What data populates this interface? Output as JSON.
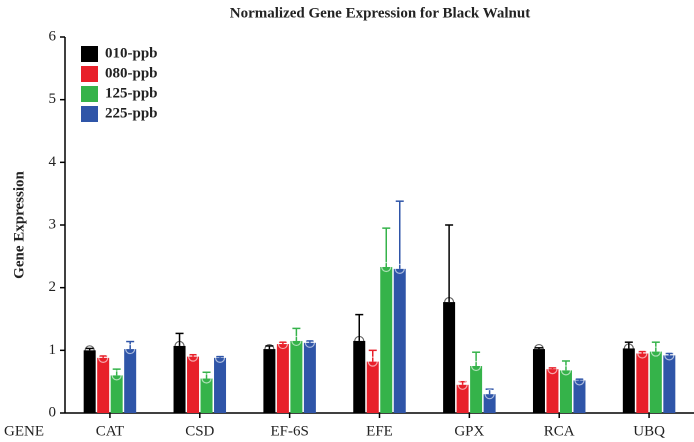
{
  "chart_data": {
    "type": "bar",
    "title": "Normalized Gene Expression for Black Walnut",
    "x_label": "GENE",
    "y_label": "Gene Expression",
    "categories": [
      "CAT",
      "CSD",
      "EF-6S",
      "EFE",
      "GPX",
      "RCA",
      "UBQ"
    ],
    "series": [
      {
        "name": "010-ppb",
        "color": "#000000",
        "values": [
          1.0,
          1.07,
          1.02,
          1.15,
          1.77,
          1.02,
          1.03
        ],
        "errors": [
          0.03,
          0.2,
          0.05,
          0.42,
          1.23,
          0.02,
          0.1
        ]
      },
      {
        "name": "080-ppb",
        "color": "#e8202a",
        "values": [
          0.88,
          0.9,
          1.1,
          0.82,
          0.45,
          0.7,
          0.95
        ],
        "errors": [
          0.03,
          0.03,
          0.03,
          0.18,
          0.05,
          0.02,
          0.03
        ]
      },
      {
        "name": "125-ppb",
        "color": "#35b34a",
        "values": [
          0.6,
          0.55,
          1.15,
          2.33,
          0.75,
          0.68,
          0.98
        ],
        "errors": [
          0.1,
          0.1,
          0.2,
          0.62,
          0.22,
          0.15,
          0.15
        ]
      },
      {
        "name": "225-ppb",
        "color": "#2f55a8",
        "values": [
          1.02,
          0.88,
          1.12,
          2.3,
          0.3,
          0.52,
          0.92
        ],
        "errors": [
          0.12,
          0.02,
          0.03,
          1.08,
          0.08,
          0.02,
          0.03
        ]
      }
    ],
    "ylim": [
      0,
      6
    ],
    "yticks": [
      0,
      1,
      2,
      3,
      4,
      5,
      6
    ],
    "legend": "upper left",
    "grid": false
  }
}
